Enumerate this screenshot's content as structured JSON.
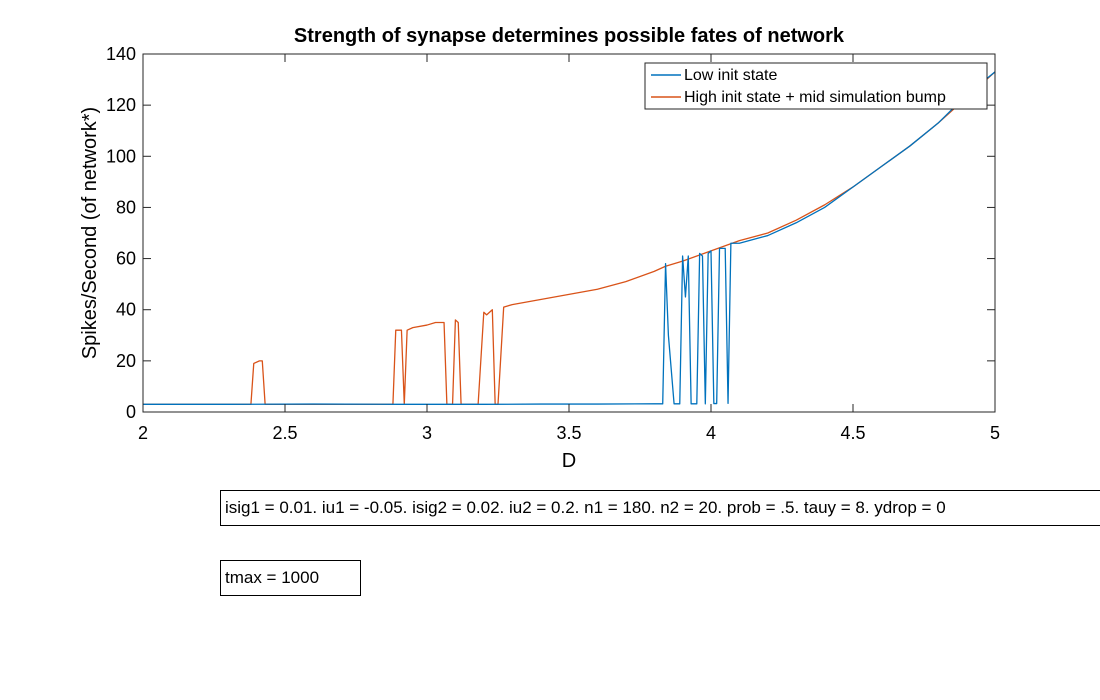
{
  "chart_data": {
    "type": "line",
    "title": "Strength of synapse determines possible fates of network",
    "xlabel": "D",
    "ylabel": "Spikes/Second (of network*)",
    "xlim": [
      2,
      5
    ],
    "ylim": [
      0,
      140
    ],
    "xticks": [
      2,
      2.5,
      3,
      3.5,
      4,
      4.5,
      5
    ],
    "xtick_labels": [
      "2",
      "2.5",
      "3",
      "3.5",
      "4",
      "4.5",
      "5"
    ],
    "yticks": [
      0,
      20,
      40,
      60,
      80,
      100,
      120,
      140
    ],
    "ytick_labels": [
      "0",
      "20",
      "40",
      "60",
      "80",
      "100",
      "120",
      "140"
    ],
    "grid": false,
    "legend_position": "top-right",
    "series": [
      {
        "name": "Low init state",
        "color": "#0072BD",
        "points": [
          [
            2.0,
            3
          ],
          [
            2.3,
            3
          ],
          [
            2.6,
            3.1
          ],
          [
            2.9,
            3
          ],
          [
            3.0,
            3
          ],
          [
            3.2,
            3
          ],
          [
            3.4,
            3.1
          ],
          [
            3.6,
            3.1
          ],
          [
            3.8,
            3.2
          ],
          [
            3.83,
            3.2
          ],
          [
            3.84,
            58
          ],
          [
            3.85,
            30
          ],
          [
            3.87,
            3.2
          ],
          [
            3.89,
            3.2
          ],
          [
            3.9,
            61
          ],
          [
            3.91,
            45
          ],
          [
            3.92,
            61
          ],
          [
            3.93,
            3.2
          ],
          [
            3.95,
            3.2
          ],
          [
            3.96,
            62
          ],
          [
            3.97,
            61
          ],
          [
            3.98,
            3.2
          ],
          [
            3.99,
            62
          ],
          [
            4.0,
            63
          ],
          [
            4.01,
            3.3
          ],
          [
            4.02,
            3.3
          ],
          [
            4.03,
            64
          ],
          [
            4.05,
            64
          ],
          [
            4.06,
            3.4
          ],
          [
            4.07,
            66
          ],
          [
            4.1,
            66
          ],
          [
            4.2,
            69
          ],
          [
            4.3,
            74
          ],
          [
            4.4,
            80
          ],
          [
            4.5,
            88
          ],
          [
            4.6,
            96
          ],
          [
            4.7,
            104
          ],
          [
            4.8,
            113
          ],
          [
            4.9,
            124
          ],
          [
            5.0,
            133
          ]
        ]
      },
      {
        "name": "High init state + mid simulation bump",
        "color": "#D95319",
        "points": [
          [
            2.0,
            3
          ],
          [
            2.2,
            3
          ],
          [
            2.38,
            3
          ],
          [
            2.39,
            19
          ],
          [
            2.41,
            20
          ],
          [
            2.42,
            20
          ],
          [
            2.43,
            3
          ],
          [
            2.6,
            3
          ],
          [
            2.8,
            3
          ],
          [
            2.88,
            3
          ],
          [
            2.89,
            32
          ],
          [
            2.91,
            32
          ],
          [
            2.92,
            3
          ],
          [
            2.93,
            32
          ],
          [
            2.95,
            33
          ],
          [
            3.0,
            34
          ],
          [
            3.03,
            35
          ],
          [
            3.06,
            35
          ],
          [
            3.07,
            3
          ],
          [
            3.09,
            3
          ],
          [
            3.1,
            36
          ],
          [
            3.11,
            35
          ],
          [
            3.12,
            3
          ],
          [
            3.18,
            3
          ],
          [
            3.2,
            39
          ],
          [
            3.21,
            38
          ],
          [
            3.23,
            40
          ],
          [
            3.24,
            3
          ],
          [
            3.25,
            3
          ],
          [
            3.27,
            41
          ],
          [
            3.3,
            42
          ],
          [
            3.4,
            44
          ],
          [
            3.5,
            46
          ],
          [
            3.6,
            48
          ],
          [
            3.7,
            51
          ],
          [
            3.8,
            55
          ],
          [
            3.84,
            57
          ],
          [
            3.9,
            59
          ],
          [
            4.0,
            63
          ],
          [
            4.1,
            67
          ],
          [
            4.2,
            70
          ],
          [
            4.3,
            75
          ],
          [
            4.4,
            81
          ],
          [
            4.5,
            88
          ],
          [
            4.6,
            96
          ],
          [
            4.7,
            104
          ],
          [
            4.8,
            113
          ],
          [
            4.9,
            123
          ],
          [
            5.0,
            133
          ]
        ]
      }
    ]
  },
  "annotations": {
    "params": "isig1 = 0.01. iu1 = -0.05. isig2 = 0.02. iu2 = 0.2. n1 = 180. n2 = 20. prob = .5. tauy = 8. ydrop = 0",
    "tmax": "tmax = 1000"
  }
}
